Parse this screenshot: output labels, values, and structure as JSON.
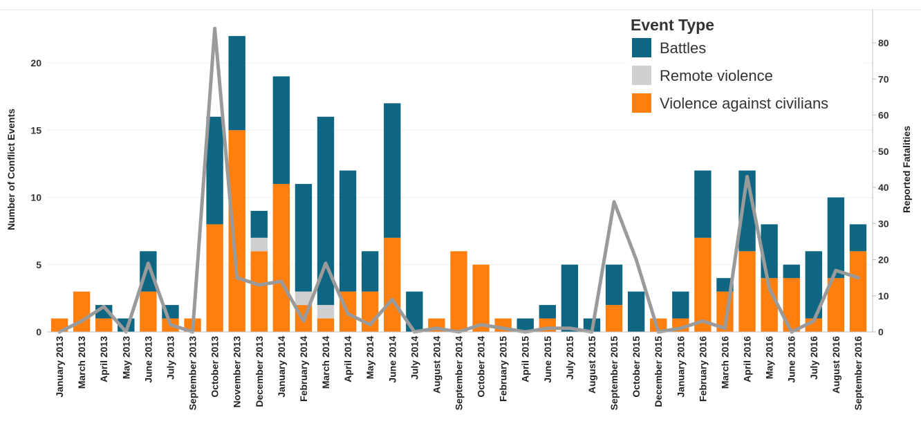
{
  "chart_data": {
    "type": "bar",
    "stacked": true,
    "categories": [
      "January 2013",
      "March 2013",
      "April 2013",
      "May 2013",
      "June 2013",
      "July 2013",
      "September 2013",
      "October 2013",
      "November 2013",
      "December 2013",
      "January 2014",
      "February 2014",
      "March 2014",
      "April 2014",
      "May 2014",
      "June 2014",
      "July 2014",
      "August 2014",
      "September 2014",
      "October 2014",
      "February 2015",
      "April 2015",
      "June 2015",
      "July 2015",
      "August 2015",
      "September 2015",
      "October 2015",
      "December 2015",
      "January 2016",
      "February 2016",
      "March 2016",
      "April 2016",
      "May 2016",
      "June 2016",
      "July 2016",
      "August 2016",
      "September 2016"
    ],
    "series": [
      {
        "name": "Violence against civilians",
        "color": "#ff7f0e",
        "values": [
          1,
          3,
          1,
          0,
          3,
          1,
          1,
          8,
          15,
          6,
          11,
          2,
          1,
          3,
          3,
          7,
          0,
          1,
          6,
          5,
          1,
          0,
          1,
          0,
          0,
          2,
          0,
          1,
          1,
          7,
          3,
          6,
          4,
          4,
          1,
          4,
          6
        ]
      },
      {
        "name": "Remote violence",
        "color": "#cfcfcf",
        "values": [
          0,
          0,
          0,
          0,
          0,
          0,
          0,
          0,
          0,
          1,
          0,
          1,
          1,
          0,
          0,
          0,
          0,
          0,
          0,
          0,
          0,
          0,
          0,
          0,
          0,
          0,
          0,
          0,
          0,
          0,
          0,
          0,
          0,
          0,
          0,
          0,
          0
        ]
      },
      {
        "name": "Battles",
        "color": "#0f6682",
        "values": [
          0,
          0,
          1,
          1,
          3,
          1,
          0,
          8,
          7,
          2,
          8,
          8,
          14,
          9,
          3,
          10,
          3,
          0,
          0,
          0,
          0,
          1,
          1,
          5,
          1,
          3,
          3,
          0,
          2,
          5,
          1,
          6,
          4,
          1,
          5,
          6,
          2
        ]
      }
    ],
    "line": {
      "color": "#9a9a9a",
      "values": [
        0,
        3,
        7,
        0,
        19,
        2,
        0,
        84,
        15,
        13,
        14,
        3,
        19,
        5,
        2,
        9,
        0,
        1,
        0,
        2,
        1,
        0,
        1,
        1,
        0,
        36,
        20,
        0,
        1,
        3,
        1,
        43,
        12,
        0,
        3,
        17,
        15
      ]
    },
    "ylabel": "Number of Conflict Events",
    "y2label": "Reported Fatalities",
    "ylim": [
      0,
      24
    ],
    "y2lim": [
      0,
      88
    ],
    "yticks": [
      0,
      5,
      10,
      15,
      20
    ],
    "y2ticks": [
      0,
      10,
      20,
      30,
      40,
      50,
      60,
      70,
      80
    ],
    "legend": {
      "title": "Event Type",
      "position": "top-right",
      "items": [
        {
          "label": "Battles",
          "color": "#0f6682"
        },
        {
          "label": "Remote violence",
          "color": "#cfcfcf"
        },
        {
          "label": "Violence against civilians",
          "color": "#ff7f0e"
        }
      ]
    }
  }
}
